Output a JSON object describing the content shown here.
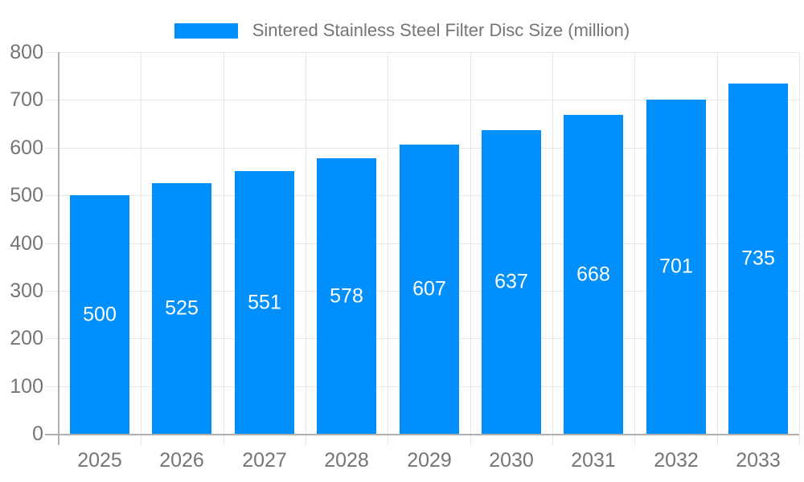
{
  "legend": {
    "series_label": "Sintered Stainless Steel Filter Disc Size (million)"
  },
  "chart_data": {
    "type": "bar",
    "title": "",
    "series": [
      {
        "name": "Sintered Stainless Steel Filter Disc Size (million)",
        "values": [
          500,
          525,
          551,
          578,
          607,
          637,
          668,
          701,
          735
        ]
      }
    ],
    "categories": [
      "2025",
      "2026",
      "2027",
      "2028",
      "2029",
      "2030",
      "2031",
      "2032",
      "2033"
    ],
    "values": [
      500,
      525,
      551,
      578,
      607,
      637,
      668,
      701,
      735
    ],
    "value_labels": [
      "500",
      "525",
      "551",
      "578",
      "607",
      "637",
      "668",
      "701",
      "735"
    ],
    "xlabel": "",
    "ylabel": "",
    "ylim": [
      0,
      800
    ],
    "ytick_step": 100,
    "ytick_labels": [
      "0",
      "100",
      "200",
      "300",
      "400",
      "500",
      "600",
      "700",
      "800"
    ],
    "grid": true,
    "legend_position": "top",
    "colors": {
      "bar": "#008FFB",
      "axis_label": "#757575",
      "legend_text": "#757575",
      "value_label": "#ffffff",
      "gridline": "#e7e7e7",
      "axis_line": "#b0b0b0"
    }
  }
}
